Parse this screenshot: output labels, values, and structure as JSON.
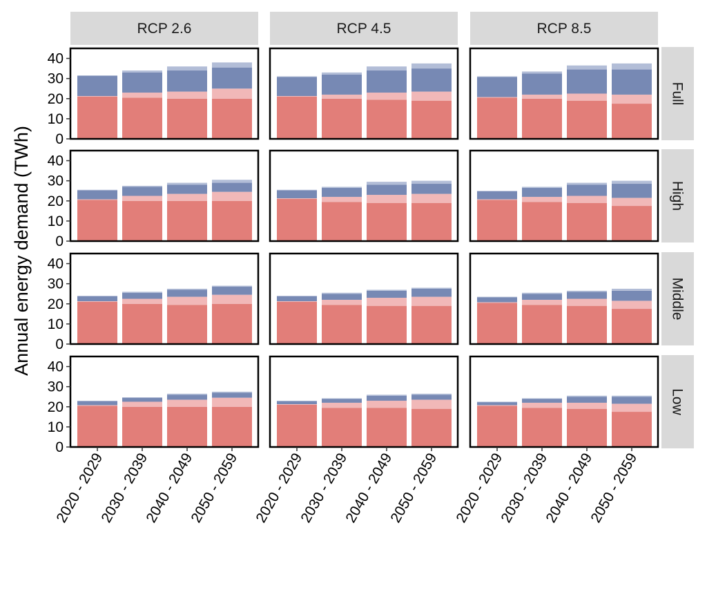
{
  "chart_data": {
    "type": "bar",
    "stacked": true,
    "ylabel": "Annual energy demand (TWh)",
    "xlabel": "",
    "ylim": [
      0,
      45
    ],
    "yticks": [
      0,
      10,
      20,
      30,
      40
    ],
    "categories": [
      "2020 - 2029",
      "2030 - 2039",
      "2040 - 2049",
      "2050 - 2059"
    ],
    "columns": [
      "RCP 2.6",
      "RCP 4.5",
      "RCP 8.5"
    ],
    "rows": [
      "Full",
      "High",
      "Middle",
      "Low"
    ],
    "layer_colors": [
      "#e27e79",
      "#f1b8b8",
      "#7789b4",
      "#b2bdd7"
    ],
    "legend": "none",
    "grid": false,
    "panels": [
      {
        "column": "RCP 2.6",
        "row": "Full",
        "layers": [
          [
            21,
            20.5,
            20,
            20
          ],
          [
            0.3,
            2.5,
            3.5,
            5
          ],
          [
            10,
            10,
            10.5,
            10.5
          ],
          [
            0.3,
            1,
            2,
            2.5
          ]
        ]
      },
      {
        "column": "RCP 4.5",
        "row": "Full",
        "layers": [
          [
            21,
            20,
            19.5,
            19
          ],
          [
            0.3,
            2,
            3.5,
            4.5
          ],
          [
            9.5,
            10,
            11,
            11.5
          ],
          [
            0.3,
            1,
            2,
            2.5
          ]
        ]
      },
      {
        "column": "RCP 8.5",
        "row": "Full",
        "layers": [
          [
            20.5,
            20,
            19,
            17.5
          ],
          [
            0.3,
            2,
            3.5,
            4.5
          ],
          [
            10,
            10.5,
            12,
            12.5
          ],
          [
            0.3,
            1,
            2,
            3
          ]
        ]
      },
      {
        "column": "RCP 2.6",
        "row": "High",
        "layers": [
          [
            20.5,
            20,
            20,
            20
          ],
          [
            0.3,
            2.5,
            3.5,
            4.5
          ],
          [
            4.5,
            4.5,
            4.5,
            4.5
          ],
          [
            0.2,
            0.5,
            1,
            1.5
          ]
        ]
      },
      {
        "column": "RCP 4.5",
        "row": "High",
        "layers": [
          [
            21,
            19.5,
            19,
            19
          ],
          [
            0.3,
            2.5,
            4,
            4.5
          ],
          [
            4,
            4.5,
            5,
            5
          ],
          [
            0.2,
            0.5,
            1.5,
            1.5
          ]
        ]
      },
      {
        "column": "RCP 8.5",
        "row": "High",
        "layers": [
          [
            20.5,
            19.5,
            19,
            17.5
          ],
          [
            0.3,
            2.5,
            3.5,
            4
          ],
          [
            4,
            4.5,
            5.5,
            7
          ],
          [
            0.2,
            0.5,
            1,
            1.5
          ]
        ]
      },
      {
        "column": "RCP 2.6",
        "row": "Middle",
        "layers": [
          [
            21,
            20,
            19.5,
            20
          ],
          [
            0.3,
            2.5,
            4,
            4.5
          ],
          [
            2.5,
            3,
            3.5,
            4
          ],
          [
            0.2,
            0.5,
            0.5,
            0.5
          ]
        ]
      },
      {
        "column": "RCP 4.5",
        "row": "Middle",
        "layers": [
          [
            21,
            19.5,
            19,
            19
          ],
          [
            0.3,
            2.5,
            4,
            4.5
          ],
          [
            2.5,
            3,
            3.5,
            4
          ],
          [
            0.2,
            0.5,
            0.5,
            0.5
          ]
        ]
      },
      {
        "column": "RCP 8.5",
        "row": "Middle",
        "layers": [
          [
            20.5,
            19.5,
            19,
            17.5
          ],
          [
            0.3,
            2.5,
            3.5,
            4
          ],
          [
            2.5,
            3,
            3.5,
            5
          ],
          [
            0.2,
            0.5,
            0.5,
            1
          ]
        ]
      },
      {
        "column": "RCP 2.6",
        "row": "Low",
        "layers": [
          [
            20.5,
            20,
            20,
            20
          ],
          [
            0.3,
            2.5,
            3.5,
            4.5
          ],
          [
            2,
            2,
            2.5,
            2.5
          ],
          [
            0.2,
            0.2,
            0.5,
            0.5
          ]
        ]
      },
      {
        "column": "RCP 4.5",
        "row": "Low",
        "layers": [
          [
            21,
            19.5,
            19.5,
            19
          ],
          [
            0.3,
            2.5,
            3.5,
            4.5
          ],
          [
            1.5,
            2,
            2.5,
            2.5
          ],
          [
            0.2,
            0.2,
            0.5,
            0.5
          ]
        ]
      },
      {
        "column": "RCP 8.5",
        "row": "Low",
        "layers": [
          [
            20.5,
            19.5,
            19,
            17.5
          ],
          [
            0.3,
            2.5,
            3,
            4
          ],
          [
            1.5,
            2,
            3,
            3.5
          ],
          [
            0.2,
            0.2,
            0.5,
            0.5
          ]
        ]
      }
    ]
  }
}
